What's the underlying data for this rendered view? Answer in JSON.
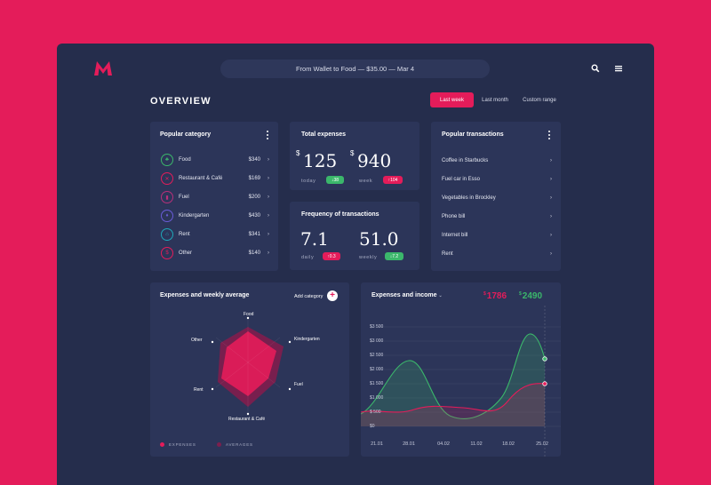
{
  "header": {
    "notification": "From Wallet to Food — $35.00 — Mar 4"
  },
  "page_title": "OVERVIEW",
  "ranges": [
    "Last week",
    "Last month",
    "Custom range"
  ],
  "popular_category": {
    "title": "Popular category",
    "items": [
      {
        "name": "Food",
        "amount": "$340",
        "icon": "basket-icon",
        "color": "#3bb76b",
        "glyph": "♣"
      },
      {
        "name": "Restaurant & Café",
        "amount": "$169",
        "icon": "cutlery-icon",
        "color": "#e41c5a",
        "glyph": "✕"
      },
      {
        "name": "Fuel",
        "amount": "$200",
        "icon": "fuel-icon",
        "color": "#b8307a",
        "glyph": "▮"
      },
      {
        "name": "Kindergarten",
        "amount": "$430",
        "icon": "kids-icon",
        "color": "#6a5cd8",
        "glyph": "♦"
      },
      {
        "name": "Rent",
        "amount": "$341",
        "icon": "house-icon",
        "color": "#1fa8b8",
        "glyph": "⌂"
      },
      {
        "name": "Other",
        "amount": "$140",
        "icon": "dollar-icon",
        "color": "#e41c5a",
        "glyph": "$"
      }
    ]
  },
  "total_expenses": {
    "title": "Total expenses",
    "today_currency": "$",
    "today_value": "125",
    "today_label": "today",
    "today_change": "↓38",
    "week_currency": "$",
    "week_value": "940",
    "week_label": "week",
    "week_change": "↑104"
  },
  "frequency": {
    "title": "Frequency of transactions",
    "daily_value": "7.1",
    "daily_label": "daily",
    "daily_change": "↑0.3",
    "weekly_value": "51.0",
    "weekly_label": "weekly",
    "weekly_change": "↓7.2"
  },
  "popular_transactions": {
    "title": "Popular transactions",
    "items": [
      "Coffee in Starbucks",
      "Fuel car in Esso",
      "Vegetables in Brockley",
      "Phone bill",
      "Internet bill",
      "Rent"
    ]
  },
  "weekly_average": {
    "title": "Expenses and weekly average",
    "add_label": "Add category",
    "add_symbol": "+",
    "labels": {
      "food": "Food",
      "kindergarten": "Kindergarten",
      "fuel": "Fuel",
      "restaurant": "Restaurant & Café",
      "rent": "Rent",
      "other": "Other"
    },
    "legend_expenses": "EXPENSES",
    "legend_averages": "AVERAGES"
  },
  "income_chart": {
    "title": "Expenses and income",
    "expenses_currency": "$",
    "expenses_total": "1786",
    "income_currency": "$",
    "income_total": "2490",
    "y_labels": [
      "$3 500",
      "$3 000",
      "$2 500",
      "$2 000",
      "$1 500",
      "$1 000",
      "$ 500",
      "$0"
    ],
    "x_labels": [
      "21.01",
      "28.01",
      "04.02",
      "11.02",
      "18.02",
      "25.02"
    ]
  },
  "colors": {
    "brand": "#e41c5a",
    "panel": "#2c3559",
    "background": "#252d4c",
    "green": "#3bb76b"
  }
}
